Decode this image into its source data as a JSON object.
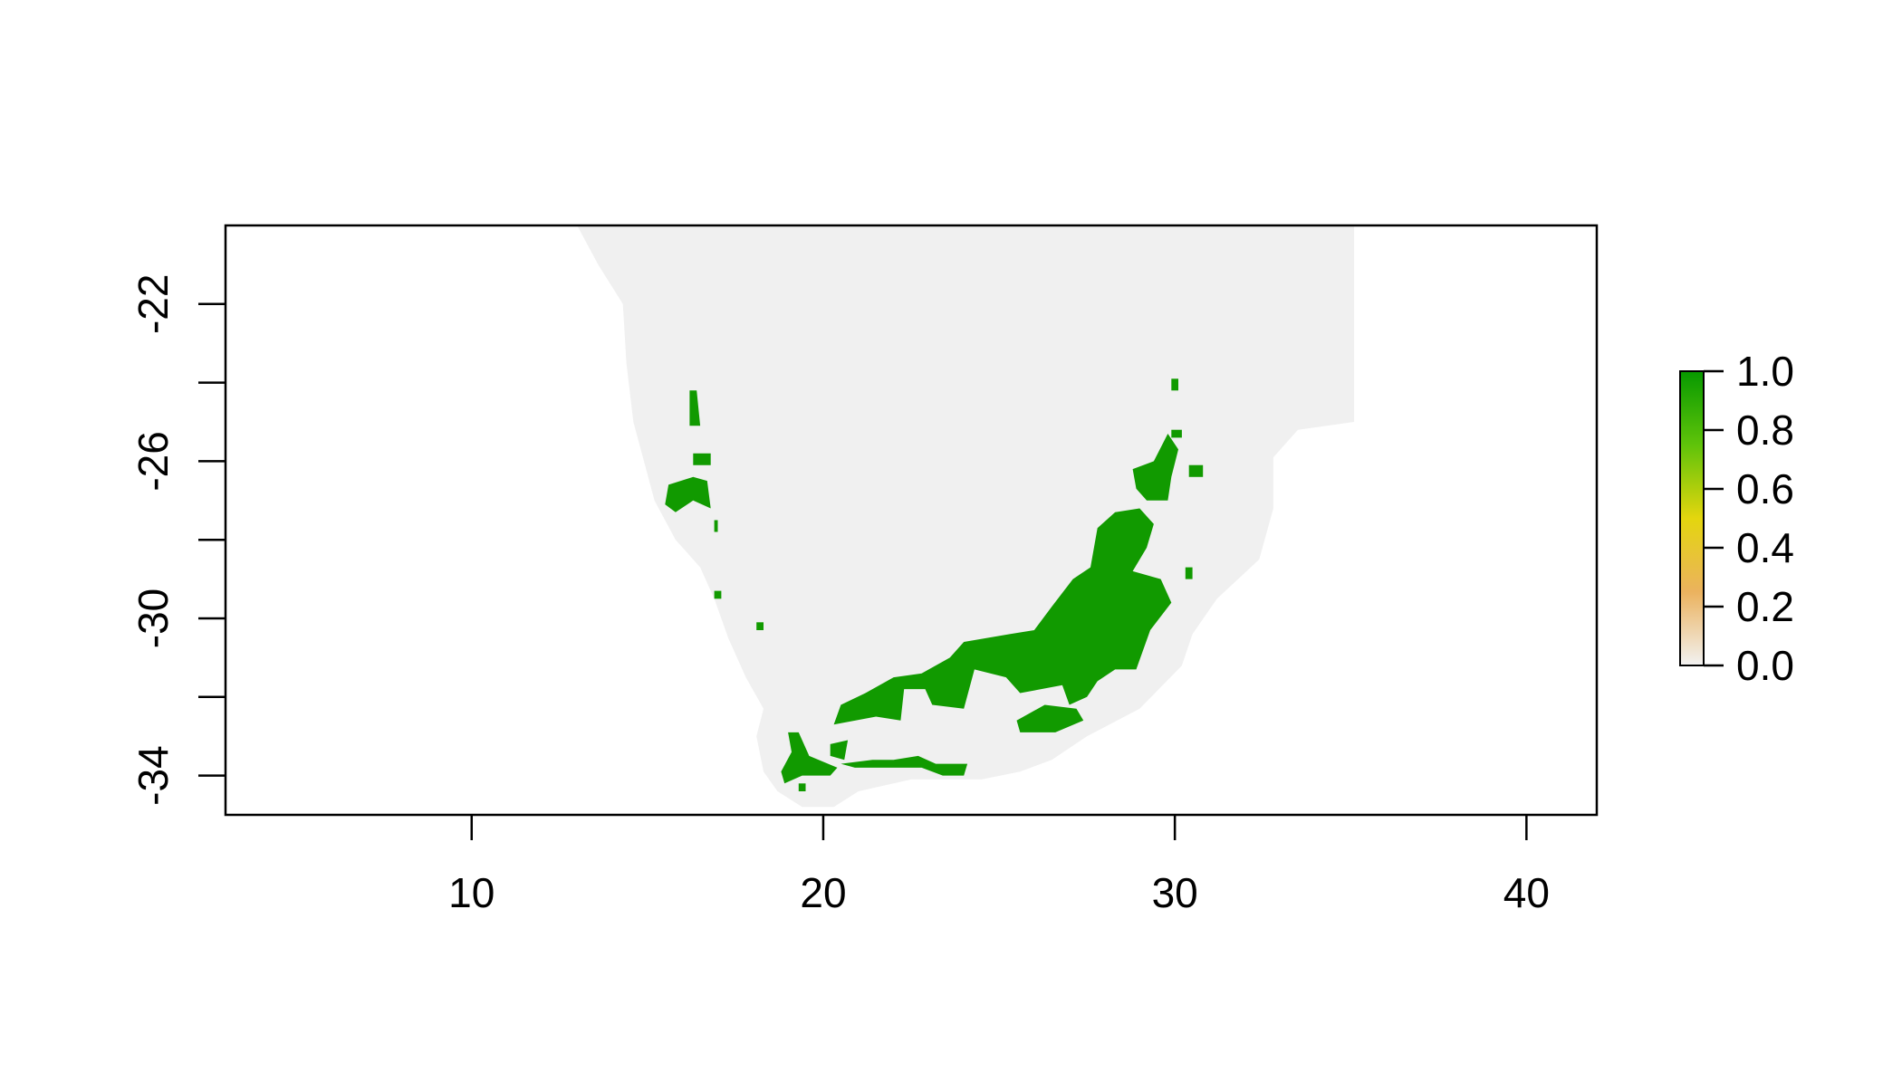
{
  "chart_data": {
    "type": "heatmap",
    "title": "",
    "xlabel": "",
    "ylabel": "",
    "xlim": [
      3,
      42
    ],
    "ylim": [
      -35,
      -20
    ],
    "x_ticks": [
      {
        "value": 10,
        "label": "10"
      },
      {
        "value": 20,
        "label": "20"
      },
      {
        "value": 30,
        "label": "30"
      },
      {
        "value": 40,
        "label": "40"
      }
    ],
    "y_ticks": [
      {
        "value": -22,
        "label": "-22"
      },
      {
        "value": -24,
        "label": ""
      },
      {
        "value": -26,
        "label": "-26"
      },
      {
        "value": -28,
        "label": ""
      },
      {
        "value": -30,
        "label": "-30"
      },
      {
        "value": -32,
        "label": ""
      },
      {
        "value": -34,
        "label": "-34"
      }
    ],
    "legend": {
      "placement": "right",
      "range": [
        0,
        1
      ],
      "ticks": [
        {
          "value": 0.0,
          "label": "0.0"
        },
        {
          "value": 0.2,
          "label": "0.2"
        },
        {
          "value": 0.4,
          "label": "0.4"
        },
        {
          "value": 0.6,
          "label": "0.6"
        },
        {
          "value": 0.8,
          "label": "0.8"
        },
        {
          "value": 1.0,
          "label": "1.0"
        }
      ],
      "colors": [
        "#f2f2f2",
        "#ebb25e",
        "#e4d60e",
        "#5fc30a",
        "#079900"
      ]
    },
    "colors": {
      "background_land": "#f0f0f0",
      "presence": "#119a00",
      "frame": "#000000"
    },
    "land_region": [
      [
        13,
        -20
      ],
      [
        35.1,
        -20
      ],
      [
        35.1,
        -25.0
      ],
      [
        33.5,
        -25.2
      ],
      [
        32.8,
        -25.9
      ],
      [
        32.8,
        -27.2
      ],
      [
        32.4,
        -28.5
      ],
      [
        31.2,
        -29.5
      ],
      [
        30.5,
        -30.4
      ],
      [
        30.2,
        -31.2
      ],
      [
        29.0,
        -32.3
      ],
      [
        27.5,
        -33.0
      ],
      [
        26.5,
        -33.6
      ],
      [
        25.6,
        -33.9
      ],
      [
        24.5,
        -34.1
      ],
      [
        22.5,
        -34.1
      ],
      [
        21.0,
        -34.4
      ],
      [
        20.3,
        -34.8
      ],
      [
        19.4,
        -34.8
      ],
      [
        18.7,
        -34.4
      ],
      [
        18.3,
        -33.9
      ],
      [
        18.1,
        -33.0
      ],
      [
        18.3,
        -32.3
      ],
      [
        17.8,
        -31.5
      ],
      [
        17.3,
        -30.5
      ],
      [
        16.9,
        -29.5
      ],
      [
        16.5,
        -28.7
      ],
      [
        15.8,
        -28.0
      ],
      [
        15.2,
        -27.0
      ],
      [
        14.9,
        -26.0
      ],
      [
        14.6,
        -25.0
      ],
      [
        14.4,
        -23.5
      ],
      [
        14.3,
        -22.0
      ],
      [
        13.6,
        -21.0
      ]
    ],
    "presence_regions": [
      [
        [
          20.3,
          -32.7
        ],
        [
          21.5,
          -32.5
        ],
        [
          22.2,
          -32.6
        ],
        [
          22.3,
          -31.8
        ],
        [
          22.9,
          -31.8
        ],
        [
          23.1,
          -32.2
        ],
        [
          24.0,
          -32.3
        ],
        [
          24.3,
          -31.3
        ],
        [
          25.2,
          -31.5
        ],
        [
          25.6,
          -31.9
        ],
        [
          26.8,
          -31.7
        ],
        [
          27.0,
          -32.2
        ],
        [
          27.5,
          -32.0
        ],
        [
          27.8,
          -31.6
        ],
        [
          28.3,
          -31.3
        ],
        [
          28.9,
          -31.3
        ],
        [
          29.3,
          -30.3
        ],
        [
          29.9,
          -29.6
        ],
        [
          29.6,
          -29.0
        ],
        [
          28.8,
          -28.8
        ],
        [
          29.2,
          -28.2
        ],
        [
          29.4,
          -27.6
        ],
        [
          29.0,
          -27.2
        ],
        [
          28.3,
          -27.3
        ],
        [
          27.8,
          -27.7
        ],
        [
          27.6,
          -28.7
        ],
        [
          27.1,
          -29.0
        ],
        [
          26.5,
          -29.7
        ],
        [
          26.0,
          -30.3
        ],
        [
          25.3,
          -30.4
        ],
        [
          24.0,
          -30.6
        ],
        [
          23.6,
          -31.0
        ],
        [
          22.8,
          -31.4
        ],
        [
          22.0,
          -31.5
        ],
        [
          21.2,
          -31.9
        ],
        [
          20.5,
          -32.2
        ]
      ],
      [
        [
          25.5,
          -32.6
        ],
        [
          26.3,
          -32.2
        ],
        [
          27.2,
          -32.3
        ],
        [
          27.4,
          -32.6
        ],
        [
          26.6,
          -32.9
        ],
        [
          25.6,
          -32.9
        ]
      ],
      [
        [
          20.5,
          -33.7
        ],
        [
          21.4,
          -33.6
        ],
        [
          22.0,
          -33.6
        ],
        [
          22.7,
          -33.5
        ],
        [
          23.2,
          -33.7
        ],
        [
          24.1,
          -33.7
        ],
        [
          24.0,
          -34.0
        ],
        [
          23.4,
          -34.0
        ],
        [
          22.8,
          -33.8
        ],
        [
          21.9,
          -33.8
        ],
        [
          20.9,
          -33.8
        ]
      ],
      [
        [
          19.0,
          -32.9
        ],
        [
          19.3,
          -32.9
        ],
        [
          19.6,
          -33.5
        ],
        [
          20.4,
          -33.8
        ],
        [
          20.2,
          -34.0
        ],
        [
          19.4,
          -34.0
        ],
        [
          18.9,
          -34.2
        ],
        [
          18.8,
          -33.9
        ],
        [
          19.1,
          -33.4
        ]
      ],
      [
        [
          20.2,
          -33.2
        ],
        [
          20.7,
          -33.1
        ],
        [
          20.6,
          -33.6
        ],
        [
          20.2,
          -33.5
        ]
      ],
      [
        [
          28.8,
          -26.2
        ],
        [
          29.4,
          -26.0
        ],
        [
          29.8,
          -25.3
        ],
        [
          30.1,
          -25.7
        ],
        [
          29.9,
          -26.4
        ],
        [
          29.8,
          -27.0
        ],
        [
          29.2,
          -27.0
        ],
        [
          28.9,
          -26.7
        ]
      ],
      [
        [
          16.2,
          -24.2
        ],
        [
          16.4,
          -24.2
        ],
        [
          16.5,
          -25.1
        ],
        [
          16.2,
          -25.1
        ]
      ],
      [
        [
          16.3,
          -25.8
        ],
        [
          16.8,
          -25.8
        ],
        [
          16.8,
          -26.1
        ],
        [
          16.3,
          -26.1
        ]
      ],
      [
        [
          15.6,
          -26.6
        ],
        [
          16.3,
          -26.4
        ],
        [
          16.7,
          -26.5
        ],
        [
          16.8,
          -27.2
        ],
        [
          16.3,
          -27.0
        ],
        [
          15.8,
          -27.3
        ],
        [
          15.5,
          -27.1
        ]
      ],
      [
        [
          29.9,
          -23.9
        ],
        [
          30.1,
          -23.9
        ],
        [
          30.1,
          -24.2
        ],
        [
          29.9,
          -24.2
        ]
      ],
      [
        [
          16.9,
          -27.5
        ],
        [
          17.0,
          -27.5
        ],
        [
          17.0,
          -27.8
        ],
        [
          16.9,
          -27.8
        ]
      ],
      [
        [
          18.1,
          -30.1
        ],
        [
          18.3,
          -30.1
        ],
        [
          18.3,
          -30.3
        ],
        [
          18.1,
          -30.3
        ]
      ],
      [
        [
          16.9,
          -29.3
        ],
        [
          17.1,
          -29.3
        ],
        [
          17.1,
          -29.5
        ],
        [
          16.9,
          -29.5
        ]
      ],
      [
        [
          29.9,
          -25.2
        ],
        [
          30.2,
          -25.2
        ],
        [
          30.2,
          -25.4
        ],
        [
          29.9,
          -25.4
        ]
      ],
      [
        [
          30.4,
          -26.1
        ],
        [
          30.8,
          -26.1
        ],
        [
          30.8,
          -26.4
        ],
        [
          30.4,
          -26.4
        ]
      ],
      [
        [
          30.3,
          -28.7
        ],
        [
          30.5,
          -28.7
        ],
        [
          30.5,
          -29.0
        ],
        [
          30.3,
          -29.0
        ]
      ],
      [
        [
          19.3,
          -34.2
        ],
        [
          19.5,
          -34.2
        ],
        [
          19.5,
          -34.4
        ],
        [
          19.3,
          -34.4
        ]
      ]
    ]
  }
}
